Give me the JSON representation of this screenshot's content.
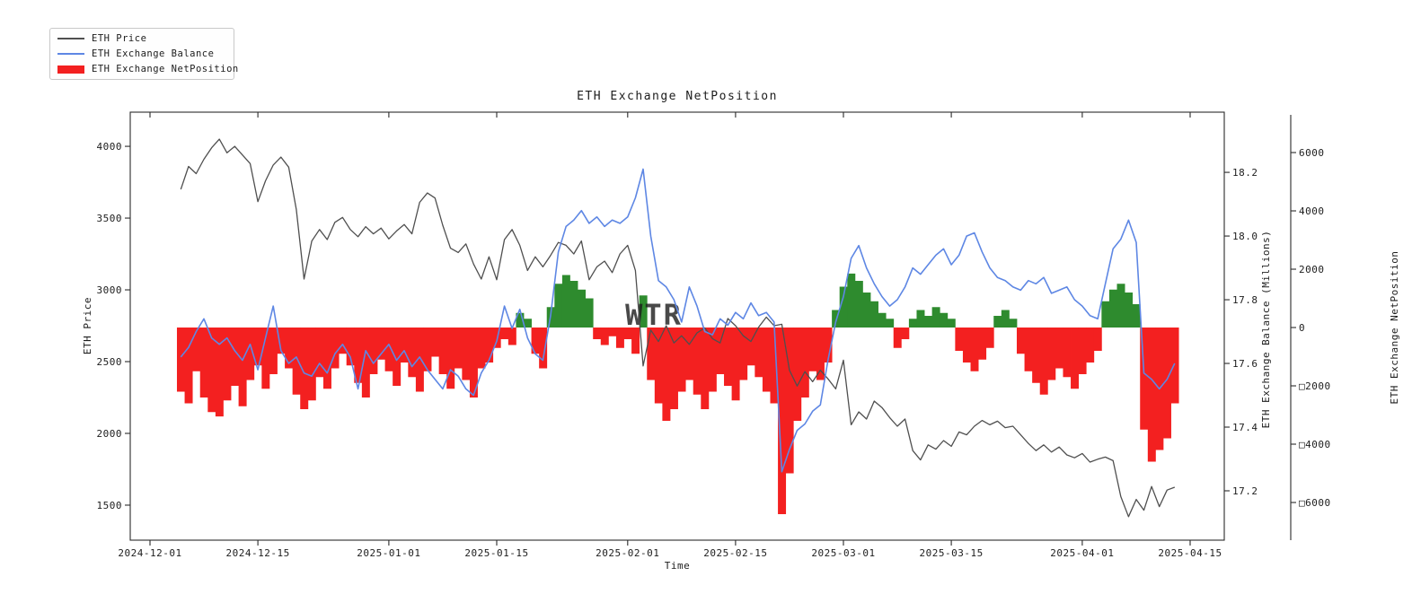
{
  "chart_data": {
    "type": "combo (line: price, line: exchange balance, bar/area: exchange net position)",
    "title": "ETH Exchange NetPosition",
    "watermark": "WTR",
    "legend": {
      "items": [
        {
          "label": "ETH Price",
          "sample": "line",
          "color": "#4f4f4f"
        },
        {
          "label": "ETH Exchange Balance",
          "sample": "line",
          "color": "#5e87e4"
        },
        {
          "label": "ETH Exchange NetPosition",
          "sample": "patch",
          "color": "#f32020"
        }
      ]
    },
    "x_axis": {
      "label": "Time",
      "tick_labels": [
        "2024-12-01",
        "2024-12-15",
        "2025-01-01",
        "2025-01-15",
        "2025-02-01",
        "2025-02-15",
        "2025-03-01",
        "2025-03-15",
        "2025-04-01",
        "2025-04-15"
      ],
      "tick_days": [
        0,
        14,
        31,
        45,
        62,
        76,
        90,
        104,
        121,
        135
      ],
      "range_days": [
        -2.56,
        139.43
      ]
    },
    "y_axis_price": {
      "label": "ETH Price",
      "side": "left",
      "ticks": [
        4000,
        3500,
        3000,
        2500,
        2000,
        1500
      ],
      "range": [
        1256,
        4238
      ]
    },
    "y_axis_balance": {
      "label": "ETH Exchange Balance (Millions)",
      "side": "right",
      "ticks": [
        18.2,
        18.0,
        17.8,
        17.6,
        17.4,
        17.2
      ],
      "tick_labels": [
        "18.2",
        "18.0",
        "17.8",
        "17.6",
        "17.4",
        "17.2"
      ],
      "range": [
        17.045,
        18.389
      ]
    },
    "y_axis_net": {
      "label": "ETH Exchange NetPosition",
      "side": "far-right offset spine",
      "ticks": [
        6000,
        4000,
        2000,
        0,
        -2000,
        -4000,
        -6000
      ],
      "tick_labels": [
        "6000",
        "4000",
        "2000",
        "0",
        "□2000",
        "□4000",
        "□6000"
      ],
      "range": [
        -7292,
        7385
      ]
    },
    "series": {
      "note": "daily values; first point is start_day days after 2024-12-01",
      "start_day": 4,
      "day_step": 1,
      "price": [
        3700,
        3860,
        3810,
        3910,
        3990,
        4050,
        3955,
        4000,
        3940,
        3880,
        3615,
        3760,
        3870,
        3925,
        3855,
        3560,
        3075,
        3340,
        3420,
        3350,
        3470,
        3505,
        3420,
        3370,
        3440,
        3390,
        3430,
        3355,
        3410,
        3455,
        3390,
        3610,
        3675,
        3640,
        3450,
        3290,
        3260,
        3320,
        3180,
        3075,
        3230,
        3070,
        3350,
        3420,
        3310,
        3135,
        3230,
        3160,
        3240,
        3330,
        3310,
        3250,
        3340,
        3070,
        3160,
        3200,
        3120,
        3250,
        3310,
        3135,
        2470,
        2720,
        2640,
        2750,
        2630,
        2680,
        2620,
        2700,
        2735,
        2660,
        2630,
        2800,
        2750,
        2680,
        2640,
        2740,
        2810,
        2750,
        2760,
        2440,
        2330,
        2430,
        2360,
        2440,
        2380,
        2310,
        2510,
        2060,
        2150,
        2100,
        2225,
        2180,
        2110,
        2050,
        2100,
        1880,
        1815,
        1920,
        1890,
        1950,
        1910,
        2010,
        1990,
        2050,
        2090,
        2060,
        2085,
        2040,
        2050,
        1990,
        1930,
        1880,
        1920,
        1870,
        1905,
        1850,
        1830,
        1860,
        1800,
        1820,
        1835,
        1810,
        1560,
        1420,
        1540,
        1465,
        1630,
        1490,
        1605,
        1625
      ],
      "balance": [
        17.62,
        17.65,
        17.7,
        17.74,
        17.68,
        17.66,
        17.68,
        17.64,
        17.61,
        17.66,
        17.58,
        17.68,
        17.78,
        17.64,
        17.6,
        17.62,
        17.57,
        17.56,
        17.6,
        17.57,
        17.63,
        17.66,
        17.62,
        17.52,
        17.64,
        17.6,
        17.63,
        17.66,
        17.61,
        17.64,
        17.59,
        17.62,
        17.58,
        17.55,
        17.52,
        17.58,
        17.56,
        17.52,
        17.5,
        17.57,
        17.61,
        17.67,
        17.78,
        17.71,
        17.77,
        17.68,
        17.63,
        17.61,
        17.75,
        17.95,
        18.03,
        18.05,
        18.08,
        18.04,
        18.06,
        18.03,
        18.05,
        18.04,
        18.06,
        18.12,
        18.21,
        18.0,
        17.86,
        17.84,
        17.8,
        17.73,
        17.84,
        17.78,
        17.7,
        17.69,
        17.74,
        17.72,
        17.76,
        17.74,
        17.79,
        17.75,
        17.76,
        17.73,
        17.26,
        17.33,
        17.39,
        17.41,
        17.45,
        17.47,
        17.61,
        17.73,
        17.81,
        17.93,
        17.97,
        17.9,
        17.85,
        17.81,
        17.78,
        17.8,
        17.84,
        17.9,
        17.88,
        17.91,
        17.94,
        17.96,
        17.91,
        17.94,
        18.0,
        18.01,
        17.95,
        17.9,
        17.87,
        17.86,
        17.84,
        17.83,
        17.86,
        17.85,
        17.87,
        17.82,
        17.83,
        17.84,
        17.8,
        17.78,
        17.75,
        17.74,
        17.85,
        17.96,
        17.99,
        18.05,
        17.98,
        17.57,
        17.55,
        17.52,
        17.55,
        17.6
      ],
      "net_position": [
        -2200,
        -2600,
        -1500,
        -2400,
        -2900,
        -3050,
        -2500,
        -2000,
        -2700,
        -1800,
        -1300,
        -2100,
        -1600,
        -900,
        -1400,
        -2300,
        -2800,
        -2500,
        -1700,
        -2100,
        -1400,
        -900,
        -1300,
        -1900,
        -2400,
        -1600,
        -1100,
        -1500,
        -2000,
        -1200,
        -1700,
        -2200,
        -1500,
        -1000,
        -1600,
        -2100,
        -1400,
        -1800,
        -2400,
        -1400,
        -1200,
        -700,
        -400,
        -600,
        500,
        300,
        -900,
        -1400,
        700,
        1500,
        1800,
        1600,
        1300,
        1000,
        -400,
        -600,
        -300,
        -700,
        -400,
        -900,
        1100,
        -1800,
        -2600,
        -3200,
        -2800,
        -2200,
        -1800,
        -2300,
        -2800,
        -2200,
        -1600,
        -2000,
        -2500,
        -1800,
        -1300,
        -1700,
        -2200,
        -2600,
        -6400,
        -5000,
        -3200,
        -2400,
        -1500,
        -1800,
        -1200,
        600,
        1400,
        1850,
        1600,
        1200,
        900,
        500,
        300,
        -700,
        -400,
        300,
        600,
        400,
        700,
        500,
        300,
        -800,
        -1200,
        -1500,
        -1100,
        -700,
        400,
        600,
        300,
        -900,
        -1500,
        -1900,
        -2300,
        -1800,
        -1400,
        -1700,
        -2100,
        -1600,
        -1200,
        -800,
        900,
        1300,
        1500,
        1200,
        800,
        -3500,
        -4600,
        -4200,
        -3800,
        -2600
      ]
    },
    "colors": {
      "price_line": "#4f4f4f",
      "balance_line": "#5e87e4",
      "net_negative": "#f32020",
      "net_positive": "#2e8b2e",
      "axis": "#2b2b2b",
      "tick_text": "#1c1c1c",
      "watermark": "#c8c8c8",
      "legend_border": "#c9c9c9"
    }
  }
}
